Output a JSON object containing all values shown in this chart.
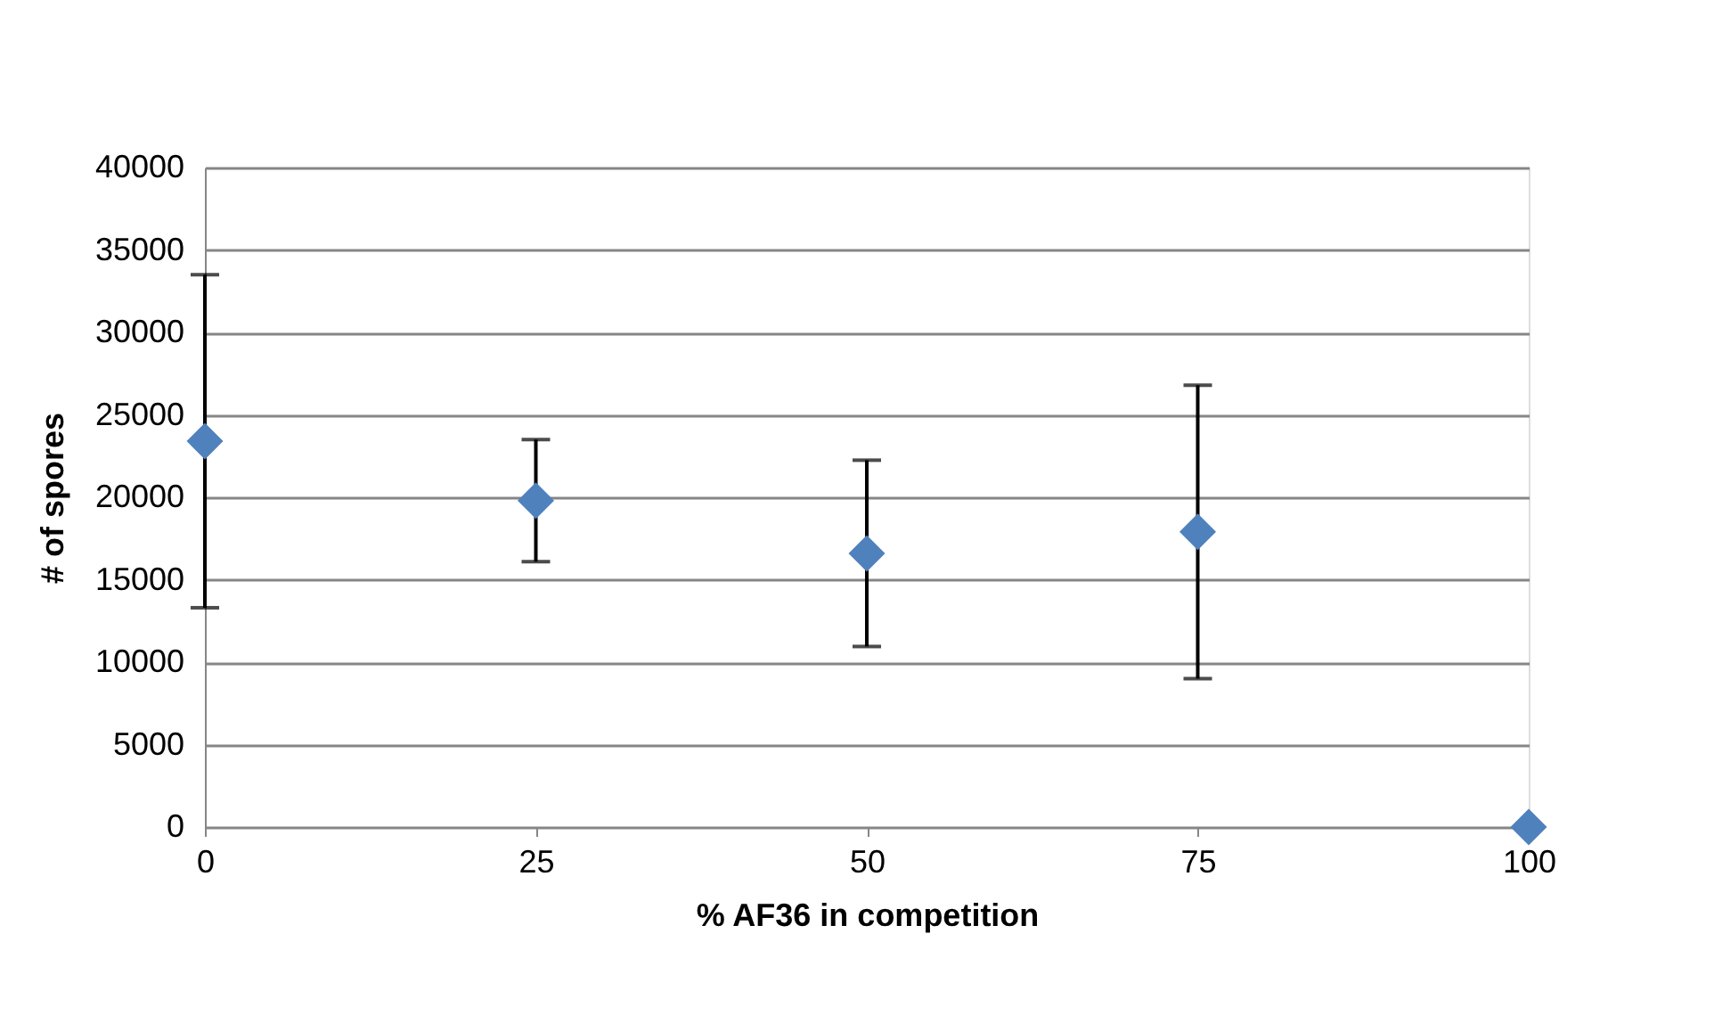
{
  "chart_data": {
    "type": "scatter",
    "xlabel": "% AF36 in competition",
    "ylabel": "# of spores",
    "x": [
      0,
      25,
      50,
      75,
      100
    ],
    "series": [
      {
        "color": "#4f81bd",
        "values": [
          23400,
          19800,
          16600,
          17900,
          0
        ],
        "errors": [
          10100,
          3700,
          5650,
          8900,
          null
        ]
      }
    ],
    "xlim": [
      0,
      100
    ],
    "xticks": [
      0,
      25,
      50,
      75,
      100
    ],
    "ylim": [
      0,
      40000
    ],
    "yticks": [
      0,
      5000,
      10000,
      15000,
      20000,
      25000,
      30000,
      35000,
      40000
    ],
    "grid": "y",
    "marker": "diamond"
  }
}
